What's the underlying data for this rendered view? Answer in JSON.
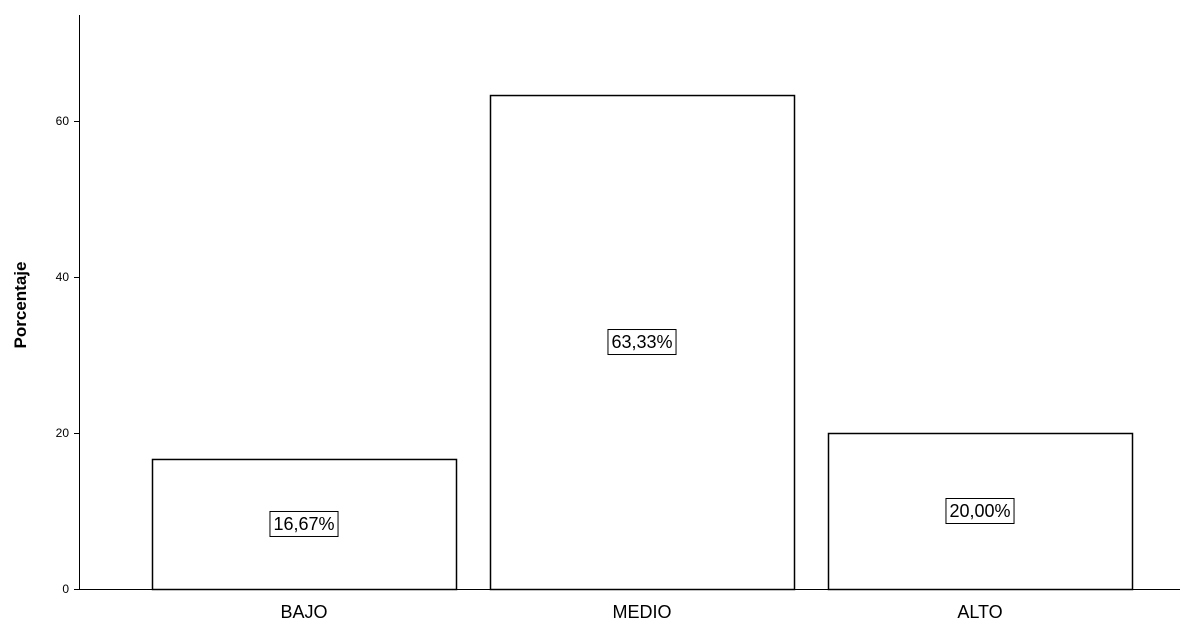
{
  "chart_data": {
    "type": "bar",
    "categories": [
      "BAJO",
      "MEDIO",
      "ALTO"
    ],
    "values": [
      16.67,
      63.33,
      20.0
    ],
    "data_labels": [
      "16,67%",
      "63,33%",
      "20,00%"
    ],
    "title": "",
    "xlabel": "",
    "ylabel": "Porcentaje",
    "ylim": [
      0,
      74
    ],
    "yticks": [
      0,
      20,
      40,
      60
    ],
    "grid": false,
    "bar_fill": "#ffffff",
    "bar_stroke": "#000000"
  }
}
